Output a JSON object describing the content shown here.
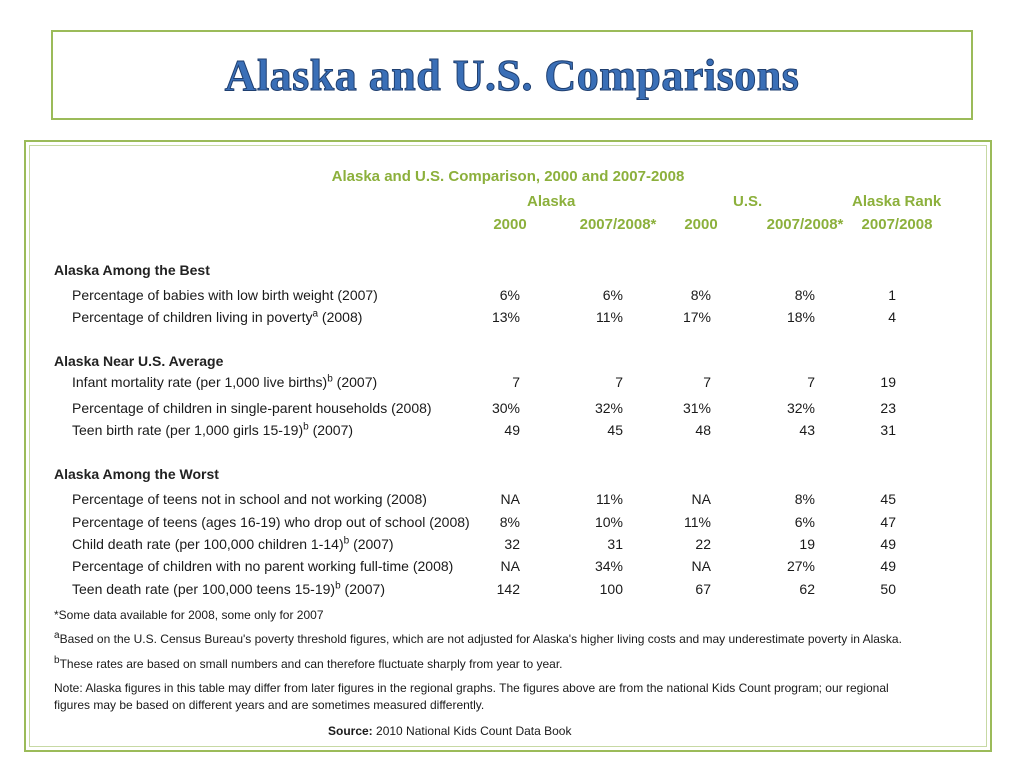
{
  "slide_title": "Alaska and U.S. Comparisons",
  "table": {
    "title": "Alaska and U.S. Comparison, 2000 and 2007-2008",
    "group_headers": {
      "alaska": "Alaska",
      "us": "U.S.",
      "rank": "Alaska Rank"
    },
    "col_headers": [
      "2000",
      "2007/2008*",
      "2000",
      "2007/2008*",
      "2007/2008"
    ],
    "sections": [
      {
        "heading": "Alaska Among the Best",
        "rows": [
          {
            "label": "Percentage of babies with low birth weight (2007)",
            "sup": "",
            "suffix": "",
            "values": [
              "6%",
              "6%",
              "8%",
              "8%",
              "1"
            ]
          },
          {
            "label": "Percentage of children living in poverty",
            "sup": "a",
            "suffix": " (2008)",
            "values": [
              "13%",
              "11%",
              "17%",
              "18%",
              "4"
            ]
          }
        ]
      },
      {
        "heading": "Alaska Near U.S.  Average",
        "rows": [
          {
            "label": "Infant mortality rate (per 1,000 live births)",
            "sup": "b",
            "suffix": " (2007)",
            "values": [
              "7",
              "7",
              "7",
              "7",
              "19"
            ]
          },
          {
            "label": "Percentage of children in single-parent households (2008)",
            "sup": "",
            "suffix": "",
            "values": [
              "30%",
              "32%",
              "31%",
              "32%",
              "23"
            ]
          },
          {
            "label": "Teen birth rate (per 1,000 girls 15-19)",
            "sup": "b",
            "suffix": " (2007)",
            "values": [
              "49",
              "45",
              "48",
              "43",
              "31"
            ]
          }
        ]
      },
      {
        "heading": "Alaska Among the Worst",
        "rows": [
          {
            "label": "Percentage of teens not in school and not working (2008)",
            "sup": "",
            "suffix": "",
            "values": [
              "NA",
              "11%",
              "NA",
              "8%",
              "45"
            ]
          },
          {
            "label": "Percentage of teens (ages 16-19) who drop out of school  (2008)",
            "sup": "",
            "suffix": "",
            "values": [
              "8%",
              "10%",
              "11%",
              "6%",
              "47"
            ]
          },
          {
            "label": "Child death rate (per 100,000 children 1-14)",
            "sup": "b",
            "suffix": " (2007)",
            "values": [
              "32",
              "31",
              "22",
              "19",
              "49"
            ]
          },
          {
            "label": "Percentage of children with no parent working full-time (2008)",
            "sup": "",
            "suffix": "",
            "values": [
              "NA",
              "34%",
              "NA",
              "27%",
              "49"
            ]
          },
          {
            "label": "Teen death rate (per 100,000 teens 15-19)",
            "sup": "b",
            "suffix": " (2007)",
            "values": [
              "142",
              "100",
              "67",
              "62",
              "50"
            ]
          }
        ]
      }
    ],
    "footnotes": {
      "star": "*Some data available for 2008, some only for 2007",
      "a_mark": "a",
      "a_text": "Based on the U.S. Census Bureau's poverty threshold figures, which are not adjusted for Alaska's higher living costs and may underestimate poverty in Alaska.",
      "b_mark": "b",
      "b_text": "These rates are based on small numbers and can therefore fluctuate sharply from year to year.",
      "note_line1": "Note: Alaska figures in this table may differ from later figures in the regional graphs. The figures above are from the national Kids Count program; our regional",
      "note_line2": "figures may be based on different  years and are sometimes measured differently.",
      "source_label": "Source:",
      "source_text": " 2010 National Kids Count Data Book"
    }
  },
  "colors": {
    "border": "#9bbb59",
    "header_green": "#8cb03c",
    "title_blue": "#3a6fb7"
  }
}
